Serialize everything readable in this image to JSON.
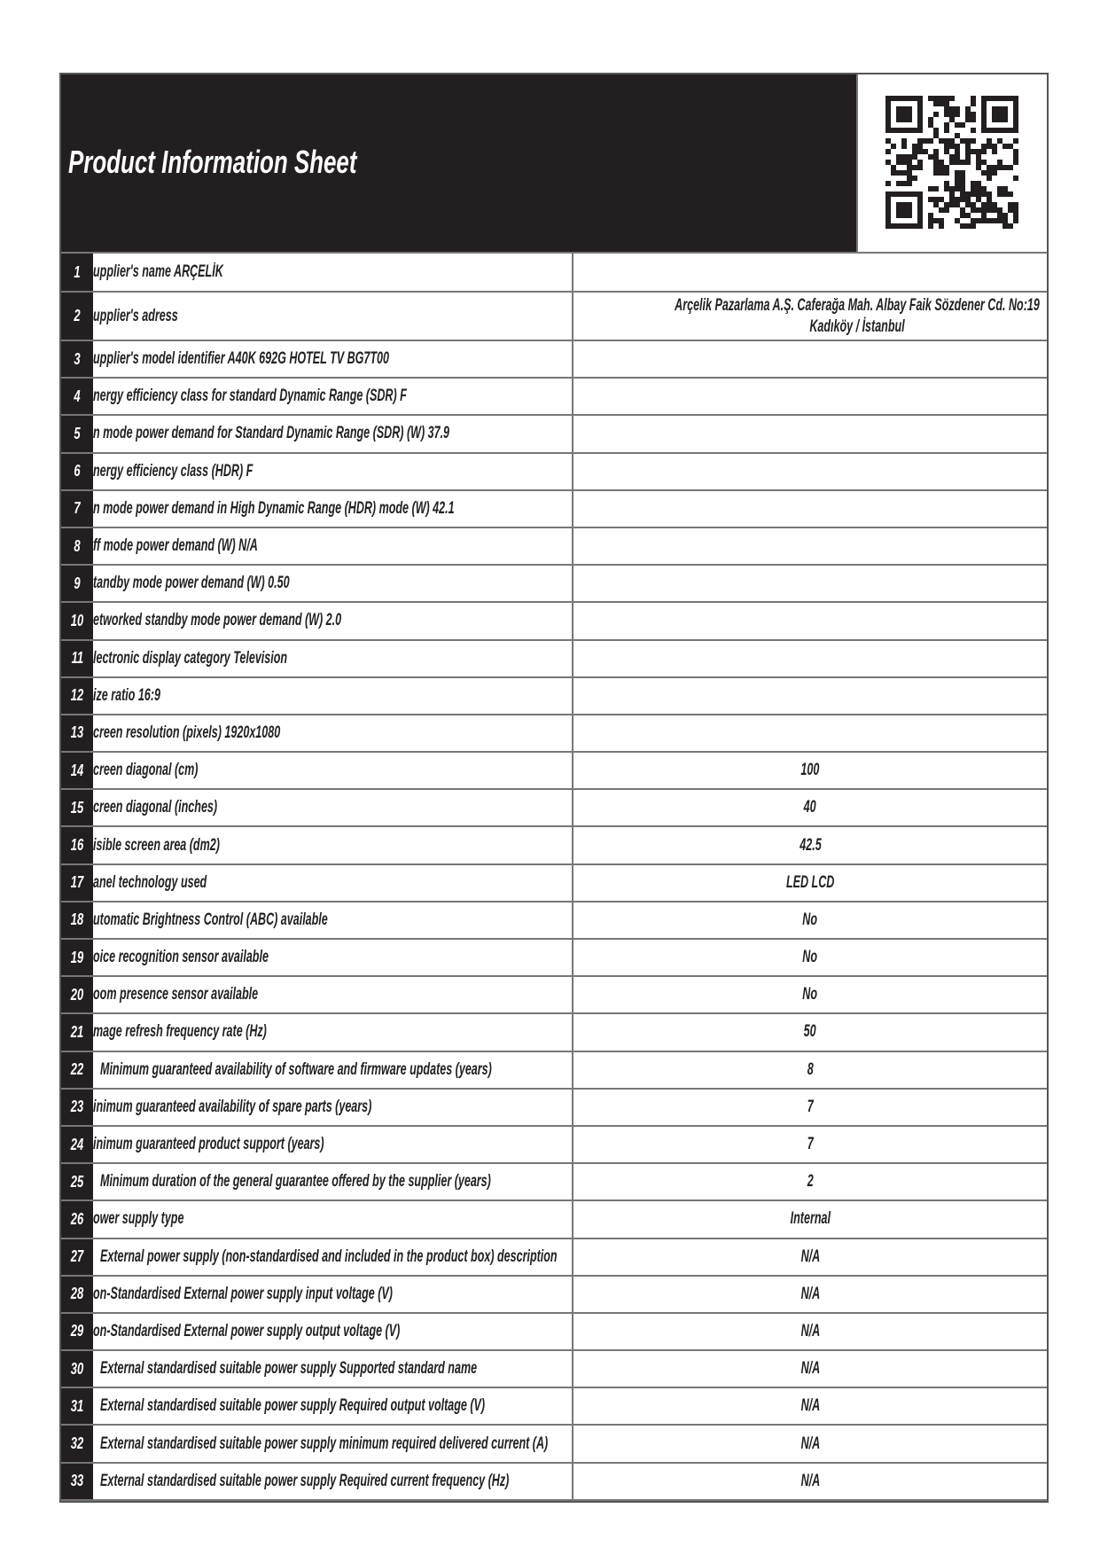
{
  "header": {
    "title": "Product Information Sheet",
    "qr_icon": "qr-code-icon"
  },
  "rows": [
    {
      "n": "1",
      "label": "upplier's name  ARÇELİK",
      "value": ""
    },
    {
      "n": "2",
      "label": "upplier's adress",
      "value": "Arçelik Pazarlama A.Ş. Caferağa Mah. Albay Faik Sözdener Cd. No:19 Kadıköy / İstanbul"
    },
    {
      "n": "3",
      "label": "upplier's model identifier A40K 692G HOTEL TV BG7T00",
      "value": ""
    },
    {
      "n": "4",
      "label": "nergy efficiency class for standard Dynamic Range (SDR) F",
      "value": ""
    },
    {
      "n": "5",
      "label": "n mode power demand for Standard Dynamic Range (SDR) (W) 37.9",
      "value": ""
    },
    {
      "n": "6",
      "label": "nergy efficiency class (HDR) F",
      "value": ""
    },
    {
      "n": "7",
      "label": "n mode power demand in High Dynamic Range (HDR) mode  (W) 42.1",
      "value": ""
    },
    {
      "n": "8",
      "label": "ff mode power demand (W) N/A",
      "value": ""
    },
    {
      "n": "9",
      "label": "tandby mode power demand  (W) 0.50",
      "value": ""
    },
    {
      "n": "10",
      "label": "etworked standby mode power demand (W) 2.0",
      "value": ""
    },
    {
      "n": "11",
      "label": "lectronic display category Television",
      "value": ""
    },
    {
      "n": "12",
      "label": "ize ratio 16:9",
      "value": ""
    },
    {
      "n": "13",
      "label": "creen resolution (pixels) 1920x1080",
      "value": ""
    },
    {
      "n": "14",
      "label": "creen diagonal (cm)",
      "value": "100"
    },
    {
      "n": "15",
      "label": "creen diagonal (inches)",
      "value": "40"
    },
    {
      "n": "16",
      "label": "isible screen area (dm2)",
      "value": "42.5"
    },
    {
      "n": "17",
      "label": "anel technology used",
      "value": "LED LCD"
    },
    {
      "n": "18",
      "label": "utomatic Brightness Control (ABC) available",
      "value": "No"
    },
    {
      "n": "19",
      "label": "oice recognition sensor available",
      "value": "No"
    },
    {
      "n": "20",
      "label": "oom presence sensor available",
      "value": "No"
    },
    {
      "n": "21",
      "label": "mage refresh frequency rate (Hz)",
      "value": "50"
    },
    {
      "n": "22",
      "label": "Minimum guaranteed availability of software and firmware updates (years)",
      "value": "8",
      "pad": true
    },
    {
      "n": "23",
      "label": "inimum guaranteed availability of spare parts (years)",
      "value": "7"
    },
    {
      "n": "24",
      "label": "inimum guaranteed product support (years)",
      "value": "7"
    },
    {
      "n": "25",
      "label": "Minimum duration of the general guarantee offered by the supplier (years)",
      "value": "2",
      "pad": true
    },
    {
      "n": "26",
      "label": "ower supply type",
      "value": "Internal"
    },
    {
      "n": "27",
      "label": "External power supply (non-standardised and included in the product box) description",
      "value": "N/A",
      "pad": true
    },
    {
      "n": "28",
      "label": "on-Standardised External power supply input voltage (V)",
      "value": "N/A"
    },
    {
      "n": "29",
      "label": "on-Standardised External power supply output voltage (V)",
      "value": "N/A"
    },
    {
      "n": "30",
      "label": "External standardised suitable power supply Supported standard name",
      "value": "N/A",
      "pad": true
    },
    {
      "n": "31",
      "label": "External standardised suitable power supply Required output voltage (V)",
      "value": "N/A",
      "pad": true
    },
    {
      "n": "32",
      "label": "External standardised suitable  power supply minimum required delivered current  (A)",
      "value": "N/A",
      "pad": true
    },
    {
      "n": "33",
      "label": "External standardised suitable power supply Required current frequency (Hz)",
      "value": "N/A",
      "pad": true
    }
  ]
}
